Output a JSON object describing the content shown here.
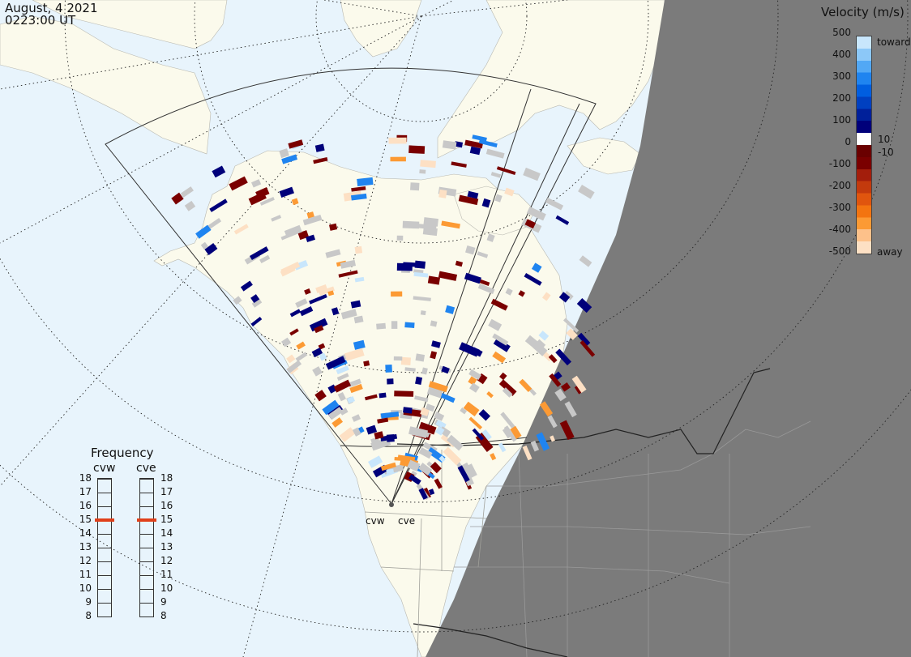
{
  "header": {
    "date": "August, 4 2021",
    "time": "0223:00 UT"
  },
  "velocity_scale": {
    "title": "Velocity (m/s)",
    "ticks": [
      "500",
      "400",
      "300",
      "200",
      "100",
      "10",
      "0",
      "-10",
      "-100",
      "-200",
      "-300",
      "-400",
      "-500"
    ],
    "toward_label": "toward",
    "away_label": "away",
    "colors": [
      "#fde0c4",
      "#fdc18a",
      "#fc9a34",
      "#f37410",
      "#e0550e",
      "#c33a0d",
      "#a31e0c",
      "#7a0000",
      "#6a0000",
      "#ffffff",
      "#00007a",
      "#00209a",
      "#0040c0",
      "#005ee0",
      "#1f84f0",
      "#52a8f5",
      "#8cc8f8",
      "#c8e6fc"
    ]
  },
  "frequency": {
    "title": "Frequency",
    "radar_left": "cvw",
    "radar_right": "cve",
    "scale": [
      "18",
      "17",
      "16",
      "15",
      "14",
      "13",
      "12",
      "11",
      "10",
      "9",
      "8"
    ],
    "left_value_mhz": 15,
    "right_value_mhz": 15,
    "marker_color": "#e0401a"
  },
  "radars": {
    "west_label": "cvw",
    "east_label": "cve"
  },
  "map_colors": {
    "ocean": "#e8f4fc",
    "land": "#fbfaec",
    "night": "#7b7b7b",
    "ground_scatter": "#c8c8c8"
  }
}
